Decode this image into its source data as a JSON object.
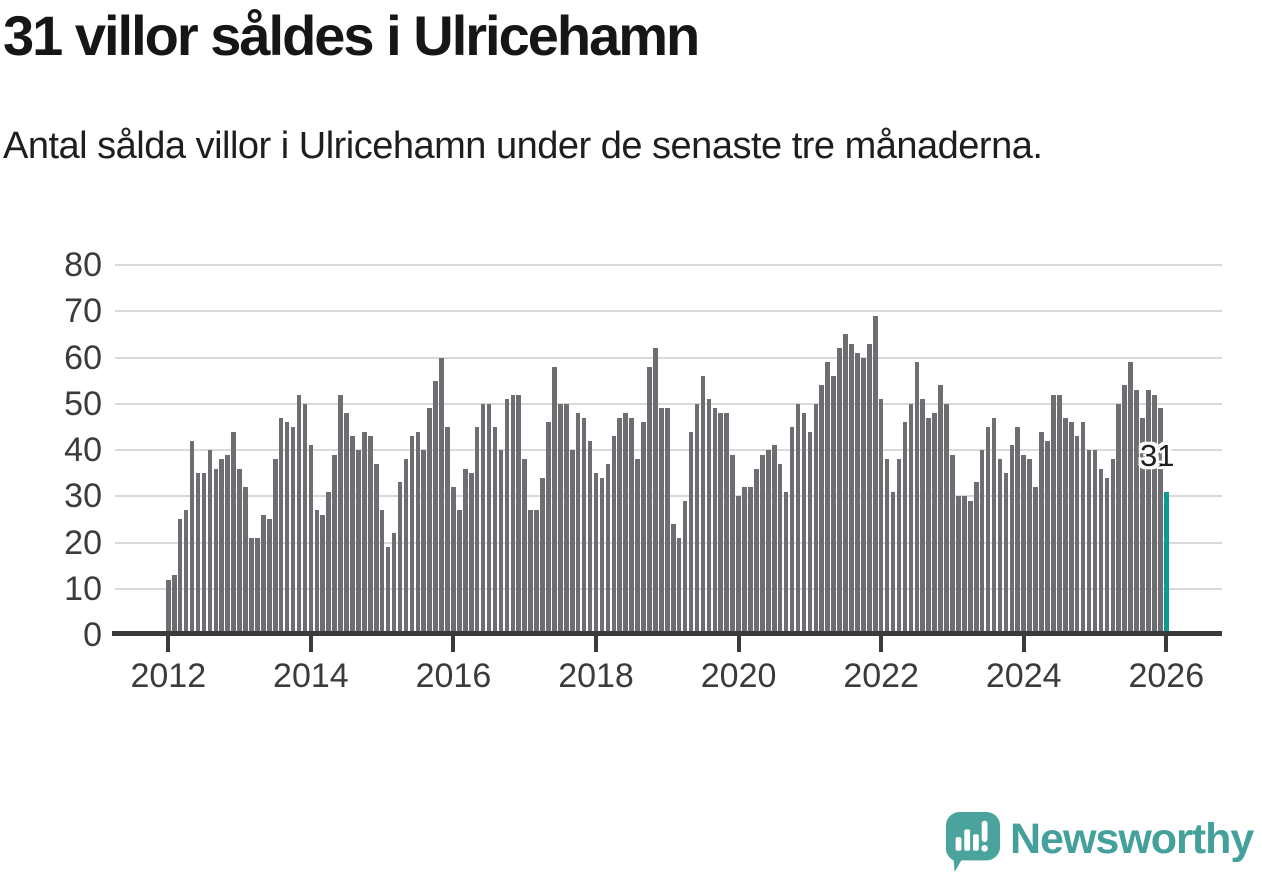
{
  "header": {
    "title": "31 villor såldes i Ulricehamn",
    "subtitle": "Antal sålda villor i Ulricehamn under de senaste tre månaderna."
  },
  "chart_data": {
    "type": "bar",
    "title": "31 villor såldes i Ulricehamn",
    "subtitle": "Antal sålda villor i Ulricehamn under de senaste tre månaderna.",
    "xlabel": "",
    "ylabel": "",
    "x_start_year": 2012,
    "x_months_per_bar": 1,
    "xticks": [
      2012,
      2014,
      2016,
      2018,
      2020,
      2022,
      2024,
      2026
    ],
    "yticks": [
      0,
      10,
      20,
      30,
      40,
      50,
      60,
      70,
      80
    ],
    "ylim": [
      0,
      80
    ],
    "grid": true,
    "values": [
      12,
      13,
      25,
      27,
      42,
      35,
      35,
      40,
      36,
      38,
      39,
      44,
      36,
      32,
      21,
      21,
      26,
      25,
      38,
      47,
      46,
      45,
      52,
      50,
      41,
      27,
      26,
      31,
      39,
      52,
      48,
      43,
      40,
      44,
      43,
      37,
      27,
      19,
      22,
      33,
      38,
      43,
      44,
      40,
      49,
      55,
      60,
      45,
      32,
      27,
      36,
      35,
      45,
      50,
      50,
      45,
      40,
      51,
      52,
      52,
      38,
      27,
      27,
      34,
      46,
      58,
      50,
      50,
      40,
      48,
      47,
      42,
      35,
      34,
      37,
      43,
      47,
      48,
      47,
      38,
      46,
      58,
      62,
      49,
      49,
      24,
      21,
      29,
      44,
      50,
      56,
      51,
      49,
      48,
      48,
      39,
      30,
      32,
      32,
      36,
      39,
      40,
      41,
      37,
      31,
      45,
      50,
      48,
      44,
      50,
      54,
      59,
      56,
      62,
      65,
      63,
      61,
      60,
      63,
      69,
      51,
      38,
      31,
      38,
      46,
      50,
      59,
      51,
      47,
      48,
      54,
      50,
      39,
      30,
      30,
      29,
      33,
      40,
      45,
      47,
      38,
      35,
      41,
      45,
      39,
      38,
      32,
      44,
      42,
      52,
      52,
      47,
      46,
      43,
      46,
      40,
      40,
      36,
      34,
      38,
      50,
      54,
      59,
      53,
      47,
      53,
      52,
      49,
      31
    ],
    "highlight_last": true,
    "highlight_value": 31,
    "highlight_value_label": "31",
    "bar_color": "#6d6d72",
    "highlight_color": "#0d9a91",
    "gridline_color": "#d9d9d9",
    "axis_color": "#3b3b3b",
    "legend_position": "none"
  },
  "footer": {
    "brand": "Newsworthy",
    "logo_icon": "newsworthy-speech-bubble-chart-icon",
    "brand_color": "#43a09b",
    "logo_fill": "#4ba39d"
  }
}
